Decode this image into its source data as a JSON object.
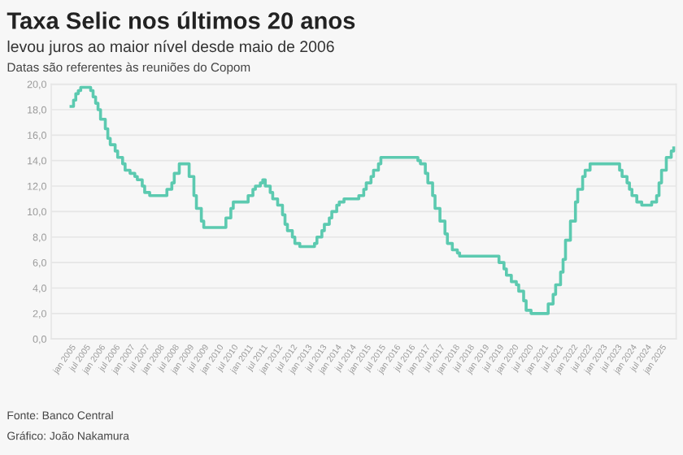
{
  "chart_data": {
    "type": "step",
    "title": "Taxa Selic nos últimos 20 anos",
    "subtitle": "levou juros ao maior nível desde maio de 2006",
    "annotations": [
      "Datas são referentes às reuniões do Copom",
      "Fonte: Banco Central",
      "Gráfico: João Nakamura"
    ],
    "series": [
      {
        "color": "#5ccab0",
        "x": [
          "2005-01",
          "2005-02",
          "2005-03",
          "2005-04",
          "2005-05",
          "2005-09",
          "2005-10",
          "2005-11",
          "2005-12",
          "2006-01",
          "2006-03",
          "2006-04",
          "2006-05",
          "2006-07",
          "2006-08",
          "2006-10",
          "2006-11",
          "2007-01",
          "2007-03",
          "2007-04",
          "2007-06",
          "2007-07",
          "2007-09",
          "2008-04",
          "2008-06",
          "2008-07",
          "2008-09",
          "2009-01",
          "2009-03",
          "2009-04",
          "2009-06",
          "2009-07",
          "2010-04",
          "2010-06",
          "2010-07",
          "2011-01",
          "2011-03",
          "2011-04",
          "2011-06",
          "2011-07",
          "2011-08",
          "2011-10",
          "2011-11",
          "2012-01",
          "2012-03",
          "2012-04",
          "2012-05",
          "2012-07",
          "2012-08",
          "2012-10",
          "2013-04",
          "2013-05",
          "2013-07",
          "2013-08",
          "2013-10",
          "2013-11",
          "2014-01",
          "2014-02",
          "2014-04",
          "2014-10",
          "2014-12",
          "2015-01",
          "2015-03",
          "2015-04",
          "2015-06",
          "2015-07",
          "2016-10",
          "2016-11",
          "2017-01",
          "2017-02",
          "2017-04",
          "2017-05",
          "2017-07",
          "2017-09",
          "2017-10",
          "2017-12",
          "2018-02",
          "2018-03",
          "2019-07",
          "2019-09",
          "2019-10",
          "2019-12",
          "2020-02",
          "2020-03",
          "2020-05",
          "2020-06",
          "2020-08",
          "2021-03",
          "2021-05",
          "2021-06",
          "2021-08",
          "2021-09",
          "2021-10",
          "2021-12",
          "2022-02",
          "2022-03",
          "2022-05",
          "2022-06",
          "2022-08",
          "2023-08",
          "2023-09",
          "2023-11",
          "2023-12",
          "2024-01",
          "2024-03",
          "2024-05",
          "2024-09",
          "2024-11",
          "2024-12",
          "2025-01",
          "2025-03",
          "2025-05",
          "2025-06"
        ],
        "values": [
          18.25,
          18.75,
          19.25,
          19.5,
          19.75,
          19.5,
          19.0,
          18.5,
          18.0,
          17.25,
          16.5,
          15.75,
          15.25,
          14.75,
          14.25,
          13.75,
          13.25,
          13.0,
          12.75,
          12.5,
          12.0,
          11.5,
          11.25,
          11.75,
          12.25,
          13.0,
          13.75,
          12.75,
          11.25,
          10.25,
          9.25,
          8.75,
          9.5,
          10.25,
          10.75,
          11.25,
          11.75,
          12.0,
          12.25,
          12.5,
          12.0,
          11.5,
          11.0,
          10.5,
          9.75,
          9.0,
          8.5,
          8.0,
          7.5,
          7.25,
          7.5,
          8.0,
          8.5,
          9.0,
          9.5,
          10.0,
          10.5,
          10.75,
          11.0,
          11.25,
          11.75,
          12.25,
          12.75,
          13.25,
          13.75,
          14.25,
          14.0,
          13.75,
          13.0,
          12.25,
          11.25,
          10.25,
          9.25,
          8.25,
          7.5,
          7.0,
          6.75,
          6.5,
          6.0,
          5.5,
          5.0,
          4.5,
          4.25,
          3.75,
          3.0,
          2.25,
          2.0,
          2.75,
          3.5,
          4.25,
          5.25,
          6.25,
          7.75,
          9.25,
          10.75,
          11.75,
          12.75,
          13.25,
          13.75,
          13.25,
          12.75,
          12.25,
          11.75,
          11.25,
          10.75,
          10.5,
          10.75,
          11.25,
          12.25,
          13.25,
          14.25,
          14.75,
          15.0
        ]
      }
    ],
    "xlim": [
      "2004-05",
      "2025-07"
    ],
    "xticks": [
      {
        "value": "2005-01",
        "label": "jan 2005"
      },
      {
        "value": "2005-07",
        "label": "jul 2005"
      },
      {
        "value": "2006-01",
        "label": "jan 2006"
      },
      {
        "value": "2006-07",
        "label": "jul 2006"
      },
      {
        "value": "2007-01",
        "label": "jan 2007"
      },
      {
        "value": "2007-07",
        "label": "jul 2007"
      },
      {
        "value": "2008-01",
        "label": "jan 2008"
      },
      {
        "value": "2008-07",
        "label": "jul 2008"
      },
      {
        "value": "2009-01",
        "label": "jan 2009"
      },
      {
        "value": "2009-07",
        "label": "jul 2009"
      },
      {
        "value": "2010-01",
        "label": "jan 2010"
      },
      {
        "value": "2010-07",
        "label": "jul 2010"
      },
      {
        "value": "2011-01",
        "label": "jan 2011"
      },
      {
        "value": "2011-07",
        "label": "jul 2011"
      },
      {
        "value": "2012-01",
        "label": "jan 2012"
      },
      {
        "value": "2012-07",
        "label": "jul 2012"
      },
      {
        "value": "2013-01",
        "label": "jan 2013"
      },
      {
        "value": "2013-07",
        "label": "jul 2013"
      },
      {
        "value": "2014-01",
        "label": "jan 2014"
      },
      {
        "value": "2014-07",
        "label": "jul 2014"
      },
      {
        "value": "2015-01",
        "label": "jan 2015"
      },
      {
        "value": "2015-07",
        "label": "jul 2015"
      },
      {
        "value": "2016-01",
        "label": "jan 2016"
      },
      {
        "value": "2016-07",
        "label": "jul 2016"
      },
      {
        "value": "2017-01",
        "label": "jan 2017"
      },
      {
        "value": "2017-07",
        "label": "jul 2017"
      },
      {
        "value": "2018-01",
        "label": "jan 2018"
      },
      {
        "value": "2018-07",
        "label": "jul 2018"
      },
      {
        "value": "2019-01",
        "label": "jan 2019"
      },
      {
        "value": "2019-07",
        "label": "jul 2019"
      },
      {
        "value": "2020-01",
        "label": "jan 2020"
      },
      {
        "value": "2020-07",
        "label": "jul 2020"
      },
      {
        "value": "2021-01",
        "label": "jan 2021"
      },
      {
        "value": "2021-07",
        "label": "jul 2021"
      },
      {
        "value": "2022-01",
        "label": "jan 2022"
      },
      {
        "value": "2022-07",
        "label": "jul 2022"
      },
      {
        "value": "2023-01",
        "label": "jan 2023"
      },
      {
        "value": "2023-07",
        "label": "jul 2023"
      },
      {
        "value": "2024-01",
        "label": "jan 2024"
      },
      {
        "value": "2024-07",
        "label": "jul 2024"
      },
      {
        "value": "2025-01",
        "label": "jan 2025"
      }
    ],
    "ylim": [
      0,
      20
    ],
    "yticks": [
      {
        "value": 0,
        "label": "0,0"
      },
      {
        "value": 2,
        "label": "2,0"
      },
      {
        "value": 4,
        "label": "4,0"
      },
      {
        "value": 6,
        "label": "6,0"
      },
      {
        "value": 8,
        "label": "8,0"
      },
      {
        "value": 10,
        "label": "10,0"
      },
      {
        "value": 12,
        "label": "12,0"
      },
      {
        "value": 14,
        "label": "14,0"
      },
      {
        "value": 16,
        "label": "16,0"
      },
      {
        "value": 18,
        "label": "18,0"
      },
      {
        "value": 20,
        "label": "20,0"
      }
    ],
    "grid": "y",
    "line_style": "solid"
  }
}
